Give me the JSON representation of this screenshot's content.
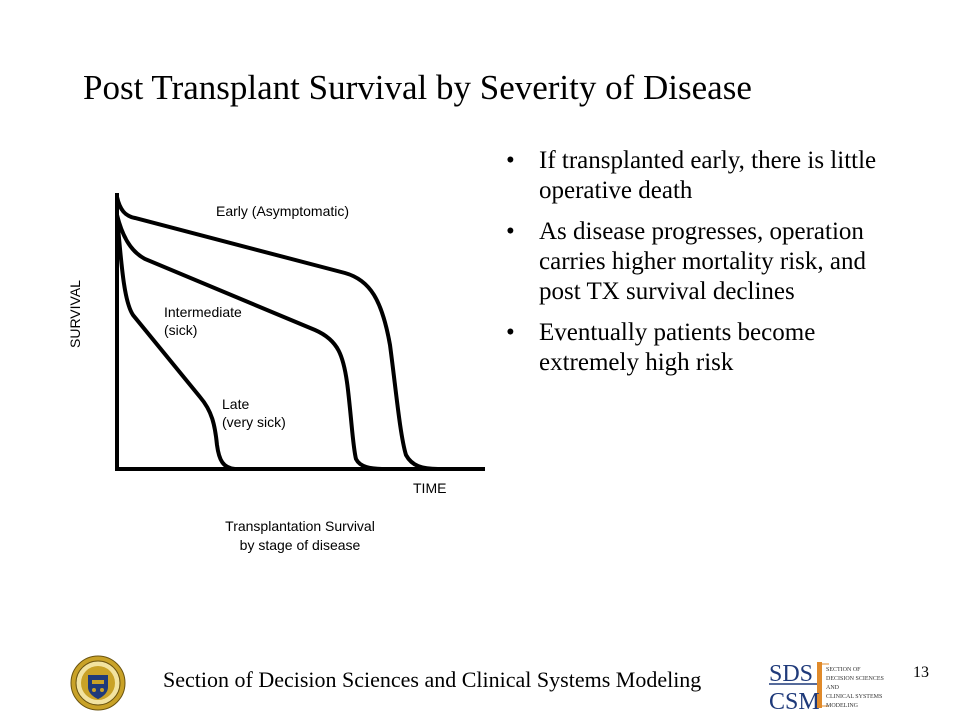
{
  "slide": {
    "title": "Post Transplant Survival by Severity of Disease",
    "bullets": [
      "If transplanted early, there is little operative death",
      "As disease progresses, operation carries higher mortality risk, and post TX survival declines",
      "Eventually patients become extremely high risk"
    ],
    "bullet_char": "•",
    "page_number": "13"
  },
  "diagram": {
    "curve_labels": {
      "early": "Early (Asymptomatic)",
      "intermediate": "Intermediate\n(sick)",
      "late": "Late\n(very sick)"
    },
    "y_axis_label": "SURVIVAL",
    "x_axis_label": "TIME",
    "caption": "Transplantation Survival\nby stage of disease"
  },
  "footer": {
    "text": "Section of Decision Sciences and Clinical Systems Modeling",
    "logo_lines": [
      "SDS",
      "CSM"
    ],
    "logo_side_text": [
      "SECTION OF",
      "DECISION SCIENCES",
      "AND",
      "CLINICAL SYSTEMS",
      "MODELING"
    ]
  },
  "colors": {
    "text": "#000000",
    "seal_gold": "#c9a227",
    "seal_blue": "#1f3a7a",
    "logo_accent": "#e08a2a"
  },
  "icons": {
    "seal": "university-seal-icon",
    "logo": "sds-csm-logo-icon"
  }
}
